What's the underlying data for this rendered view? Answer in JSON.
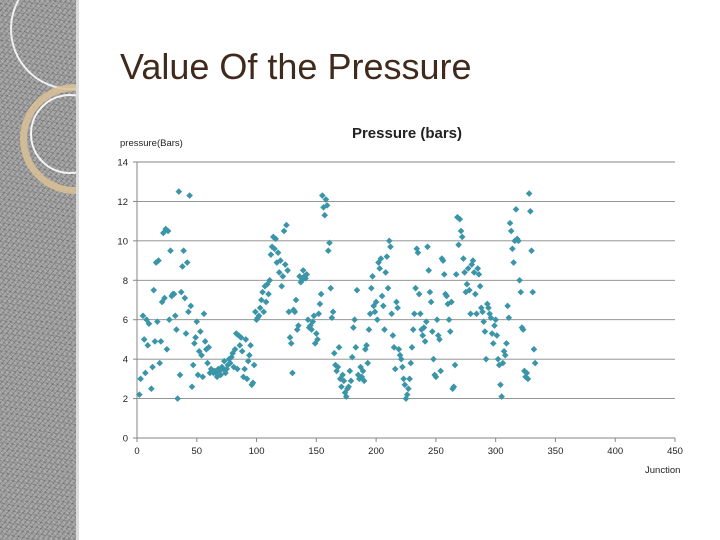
{
  "slide": {
    "title": "Value Of the Pressure"
  },
  "colors": {
    "marker": "#3b95a8",
    "gridline": "#868686",
    "axis": "#868686",
    "title_text": "#3f2a1c"
  },
  "chart_data": {
    "type": "scatter",
    "title": "Pressure (bars)",
    "ylabel": "pressure(Bars)",
    "xlabel": "Junction",
    "xlim": [
      0,
      450
    ],
    "ylim": [
      0,
      14
    ],
    "x_ticks": [
      0,
      50,
      100,
      150,
      200,
      250,
      300,
      350,
      400,
      450
    ],
    "y_ticks": [
      0,
      2,
      4,
      6,
      8,
      10,
      12,
      14
    ],
    "grid": "horizontal",
    "legend": "none",
    "series": [
      {
        "marker": "diamond",
        "points": [
          [
            2,
            2.2
          ],
          [
            3,
            3.0
          ],
          [
            5,
            6.2
          ],
          [
            6,
            5.0
          ],
          [
            7,
            3.3
          ],
          [
            8,
            6.0
          ],
          [
            9,
            4.7
          ],
          [
            10,
            5.8
          ],
          [
            12,
            2.5
          ],
          [
            13,
            3.6
          ],
          [
            14,
            7.5
          ],
          [
            15,
            4.9
          ],
          [
            16,
            8.9
          ],
          [
            17,
            5.9
          ],
          [
            18,
            9.0
          ],
          [
            19,
            3.8
          ],
          [
            20,
            4.9
          ],
          [
            21,
            6.9
          ],
          [
            22,
            10.4
          ],
          [
            23,
            7.1
          ],
          [
            24,
            10.6
          ],
          [
            25,
            4.5
          ],
          [
            26,
            10.5
          ],
          [
            27,
            6.0
          ],
          [
            28,
            9.5
          ],
          [
            29,
            7.2
          ],
          [
            30,
            7.3
          ],
          [
            31,
            7.3
          ],
          [
            32,
            6.2
          ],
          [
            33,
            5.5
          ],
          [
            34,
            2.0
          ],
          [
            35,
            12.5
          ],
          [
            36,
            3.2
          ],
          [
            37,
            7.4
          ],
          [
            38,
            8.7
          ],
          [
            39,
            9.5
          ],
          [
            40,
            7.1
          ],
          [
            41,
            5.3
          ],
          [
            42,
            8.9
          ],
          [
            43,
            6.4
          ],
          [
            44,
            12.3
          ],
          [
            45,
            6.7
          ],
          [
            46,
            2.6
          ],
          [
            47,
            3.7
          ],
          [
            48,
            4.8
          ],
          [
            49,
            5.1
          ],
          [
            50,
            5.9
          ],
          [
            51,
            3.2
          ],
          [
            52,
            4.4
          ],
          [
            53,
            5.4
          ],
          [
            54,
            4.2
          ],
          [
            55,
            3.1
          ],
          [
            56,
            6.3
          ],
          [
            57,
            4.9
          ],
          [
            58,
            4.5
          ],
          [
            59,
            3.8
          ],
          [
            60,
            4.6
          ],
          [
            61,
            3.3
          ],
          [
            62,
            3.5
          ],
          [
            63,
            3.4
          ],
          [
            64,
            3.3
          ],
          [
            65,
            3.4
          ],
          [
            66,
            3.3
          ],
          [
            67,
            3.1
          ],
          [
            68,
            3.5
          ],
          [
            69,
            3.4
          ],
          [
            70,
            3.2
          ],
          [
            71,
            3.6
          ],
          [
            72,
            3.5
          ],
          [
            73,
            3.9
          ],
          [
            74,
            3.3
          ],
          [
            75,
            3.5
          ],
          [
            76,
            3.7
          ],
          [
            77,
            4.0
          ],
          [
            78,
            3.8
          ],
          [
            79,
            4.1
          ],
          [
            80,
            4.3
          ],
          [
            81,
            3.6
          ],
          [
            82,
            4.5
          ],
          [
            83,
            5.3
          ],
          [
            84,
            3.5
          ],
          [
            85,
            5.2
          ],
          [
            86,
            4.7
          ],
          [
            87,
            5.1
          ],
          [
            88,
            4.4
          ],
          [
            89,
            3.1
          ],
          [
            90,
            3.5
          ],
          [
            91,
            5.0
          ],
          [
            92,
            3.0
          ],
          [
            93,
            3.9
          ],
          [
            94,
            4.2
          ],
          [
            95,
            4.7
          ],
          [
            96,
            2.7
          ],
          [
            97,
            2.8
          ],
          [
            98,
            3.7
          ],
          [
            99,
            6.4
          ],
          [
            100,
            6.0
          ],
          [
            101,
            6.1
          ],
          [
            102,
            6.2
          ],
          [
            103,
            6.6
          ],
          [
            104,
            7.0
          ],
          [
            105,
            7.4
          ],
          [
            106,
            6.4
          ],
          [
            107,
            7.7
          ],
          [
            108,
            6.9
          ],
          [
            109,
            7.8
          ],
          [
            110,
            7.3
          ],
          [
            111,
            8.0
          ],
          [
            112,
            9.3
          ],
          [
            113,
            9.7
          ],
          [
            114,
            10.2
          ],
          [
            115,
            9.6
          ],
          [
            116,
            10.1
          ],
          [
            117,
            8.9
          ],
          [
            118,
            9.4
          ],
          [
            119,
            8.4
          ],
          [
            120,
            9.0
          ],
          [
            121,
            7.7
          ],
          [
            122,
            8.2
          ],
          [
            123,
            10.5
          ],
          [
            124,
            8.8
          ],
          [
            125,
            10.8
          ],
          [
            126,
            8.5
          ],
          [
            127,
            6.4
          ],
          [
            128,
            5.1
          ],
          [
            129,
            4.8
          ],
          [
            130,
            3.3
          ],
          [
            131,
            6.5
          ],
          [
            132,
            6.4
          ],
          [
            133,
            7.0
          ],
          [
            134,
            5.5
          ],
          [
            135,
            5.7
          ],
          [
            136,
            8.2
          ],
          [
            137,
            7.9
          ],
          [
            138,
            8.0
          ],
          [
            139,
            8.5
          ],
          [
            140,
            8.2
          ],
          [
            141,
            8.1
          ],
          [
            142,
            8.3
          ],
          [
            143,
            6.0
          ],
          [
            144,
            5.6
          ],
          [
            145,
            5.7
          ],
          [
            146,
            5.5
          ],
          [
            147,
            5.9
          ],
          [
            148,
            6.2
          ],
          [
            149,
            4.8
          ],
          [
            150,
            5.3
          ],
          [
            151,
            5.0
          ],
          [
            152,
            6.3
          ],
          [
            153,
            6.8
          ],
          [
            154,
            7.3
          ],
          [
            155,
            12.3
          ],
          [
            156,
            11.7
          ],
          [
            157,
            11.3
          ],
          [
            158,
            12.1
          ],
          [
            159,
            11.8
          ],
          [
            160,
            9.5
          ],
          [
            161,
            9.9
          ],
          [
            162,
            7.6
          ],
          [
            163,
            6.1
          ],
          [
            164,
            6.4
          ],
          [
            165,
            4.3
          ],
          [
            166,
            3.7
          ],
          [
            167,
            3.4
          ],
          [
            168,
            3.6
          ],
          [
            169,
            4.6
          ],
          [
            170,
            3.0
          ],
          [
            171,
            2.6
          ],
          [
            172,
            3.2
          ],
          [
            173,
            2.9
          ],
          [
            174,
            2.3
          ],
          [
            175,
            2.1
          ],
          [
            176,
            2.5
          ],
          [
            177,
            2.6
          ],
          [
            178,
            3.4
          ],
          [
            179,
            2.9
          ],
          [
            180,
            4.1
          ],
          [
            181,
            5.6
          ],
          [
            182,
            6.0
          ],
          [
            183,
            4.6
          ],
          [
            184,
            7.5
          ],
          [
            185,
            3.2
          ],
          [
            186,
            3.0
          ],
          [
            187,
            3.6
          ],
          [
            188,
            3.1
          ],
          [
            189,
            3.4
          ],
          [
            190,
            2.9
          ],
          [
            191,
            4.5
          ],
          [
            192,
            4.7
          ],
          [
            193,
            3.8
          ],
          [
            194,
            5.5
          ],
          [
            195,
            6.3
          ],
          [
            196,
            7.6
          ],
          [
            197,
            8.2
          ],
          [
            198,
            6.7
          ],
          [
            199,
            6.4
          ],
          [
            200,
            6.9
          ],
          [
            201,
            6.0
          ],
          [
            202,
            8.9
          ],
          [
            203,
            8.6
          ],
          [
            204,
            9.1
          ],
          [
            205,
            7.2
          ],
          [
            206,
            6.7
          ],
          [
            207,
            5.5
          ],
          [
            208,
            8.4
          ],
          [
            209,
            9.2
          ],
          [
            210,
            7.6
          ],
          [
            211,
            10.0
          ],
          [
            212,
            9.7
          ],
          [
            213,
            6.3
          ],
          [
            214,
            5.2
          ],
          [
            215,
            4.6
          ],
          [
            216,
            3.5
          ],
          [
            217,
            6.9
          ],
          [
            218,
            6.6
          ],
          [
            219,
            4.5
          ],
          [
            220,
            4.2
          ],
          [
            221,
            4.0
          ],
          [
            222,
            3.6
          ],
          [
            223,
            3.0
          ],
          [
            224,
            2.7
          ],
          [
            225,
            2.0
          ],
          [
            226,
            2.2
          ],
          [
            227,
            2.5
          ],
          [
            228,
            3.0
          ],
          [
            229,
            3.8
          ],
          [
            230,
            4.6
          ],
          [
            231,
            5.5
          ],
          [
            232,
            6.3
          ],
          [
            233,
            7.6
          ],
          [
            234,
            9.6
          ],
          [
            235,
            9.4
          ],
          [
            236,
            7.3
          ],
          [
            237,
            6.3
          ],
          [
            238,
            5.5
          ],
          [
            239,
            5.2
          ],
          [
            240,
            5.6
          ],
          [
            241,
            4.9
          ],
          [
            242,
            5.9
          ],
          [
            243,
            9.7
          ],
          [
            244,
            8.5
          ],
          [
            245,
            7.4
          ],
          [
            246,
            6.9
          ],
          [
            247,
            5.4
          ],
          [
            248,
            4.0
          ],
          [
            249,
            3.2
          ],
          [
            250,
            3.1
          ],
          [
            251,
            6.0
          ],
          [
            252,
            5.2
          ],
          [
            253,
            5.0
          ],
          [
            254,
            3.4
          ],
          [
            255,
            9.1
          ],
          [
            256,
            9.0
          ],
          [
            257,
            8.3
          ],
          [
            258,
            7.3
          ],
          [
            259,
            7.2
          ],
          [
            260,
            6.8
          ],
          [
            261,
            6.0
          ],
          [
            262,
            5.4
          ],
          [
            263,
            6.9
          ],
          [
            264,
            2.5
          ],
          [
            265,
            2.6
          ],
          [
            266,
            3.7
          ],
          [
            267,
            8.3
          ],
          [
            268,
            11.2
          ],
          [
            269,
            9.8
          ],
          [
            270,
            11.1
          ],
          [
            271,
            10.5
          ],
          [
            272,
            10.2
          ],
          [
            273,
            9.1
          ],
          [
            274,
            8.4
          ],
          [
            275,
            7.4
          ],
          [
            276,
            7.8
          ],
          [
            277,
            8.6
          ],
          [
            278,
            7.5
          ],
          [
            279,
            6.3
          ],
          [
            280,
            8.8
          ],
          [
            281,
            9.0
          ],
          [
            282,
            8.4
          ],
          [
            283,
            7.3
          ],
          [
            284,
            6.3
          ],
          [
            285,
            8.6
          ],
          [
            286,
            8.3
          ],
          [
            287,
            7.7
          ],
          [
            288,
            6.6
          ],
          [
            289,
            6.4
          ],
          [
            290,
            5.9
          ],
          [
            291,
            5.4
          ],
          [
            292,
            4.0
          ],
          [
            293,
            6.8
          ],
          [
            294,
            6.6
          ],
          [
            295,
            6.3
          ],
          [
            296,
            6.1
          ],
          [
            297,
            5.3
          ],
          [
            298,
            4.8
          ],
          [
            299,
            5.7
          ],
          [
            300,
            6.0
          ],
          [
            301,
            5.2
          ],
          [
            302,
            4.0
          ],
          [
            303,
            3.7
          ],
          [
            304,
            2.7
          ],
          [
            305,
            2.1
          ],
          [
            306,
            3.8
          ],
          [
            307,
            4.4
          ],
          [
            308,
            4.2
          ],
          [
            309,
            4.8
          ],
          [
            310,
            6.7
          ],
          [
            311,
            6.1
          ],
          [
            312,
            10.9
          ],
          [
            313,
            10.5
          ],
          [
            314,
            9.6
          ],
          [
            315,
            8.9
          ],
          [
            316,
            10.0
          ],
          [
            317,
            11.6
          ],
          [
            318,
            10.1
          ],
          [
            319,
            10.0
          ],
          [
            320,
            8.0
          ],
          [
            321,
            7.4
          ],
          [
            322,
            5.6
          ],
          [
            323,
            5.5
          ],
          [
            324,
            3.4
          ],
          [
            325,
            3.1
          ],
          [
            326,
            3.3
          ],
          [
            327,
            3.0
          ],
          [
            328,
            12.4
          ],
          [
            329,
            11.5
          ],
          [
            330,
            9.5
          ],
          [
            331,
            7.4
          ],
          [
            332,
            4.5
          ],
          [
            333,
            3.8
          ]
        ]
      }
    ]
  }
}
